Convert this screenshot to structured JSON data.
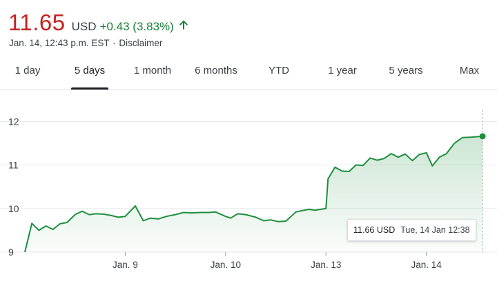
{
  "quote": {
    "price": "11.65",
    "currency": "USD",
    "change": "+0.43 (3.83%)",
    "direction_icon": "arrow-up-icon",
    "timestamp": "Jan. 14, 12:43 p.m. EST",
    "separator": "·",
    "disclaimer": "Disclaimer"
  },
  "colors": {
    "price": "#c5221f",
    "positive": "#188038",
    "line": "#1e8e3e"
  },
  "tabs": [
    {
      "label": "1 day"
    },
    {
      "label": "5 days",
      "active": true
    },
    {
      "label": "1 month"
    },
    {
      "label": "6 months"
    },
    {
      "label": "YTD"
    },
    {
      "label": "1 year"
    },
    {
      "label": "5 years"
    },
    {
      "label": "Max"
    }
  ],
  "tooltip": {
    "value": "11.66 USD",
    "time": "Tue, 14 Jan 12:38"
  },
  "chart_data": {
    "type": "area",
    "title": "",
    "xlabel": "",
    "ylabel": "",
    "ylim": [
      9,
      12.1
    ],
    "yticks": [
      9,
      10,
      11,
      12
    ],
    "xticks": [
      {
        "label": "Jan. 9",
        "x": 1.0
      },
      {
        "label": "Jan. 10",
        "x": 2.0
      },
      {
        "label": "Jan. 13",
        "x": 3.0
      },
      {
        "label": "Jan. 14",
        "x": 4.0
      }
    ],
    "xlim": [
      0,
      4.58
    ],
    "grid": true,
    "series": [
      {
        "values": [
          [
            0.0,
            9.0
          ],
          [
            0.07,
            9.66
          ],
          [
            0.14,
            9.5
          ],
          [
            0.21,
            9.6
          ],
          [
            0.28,
            9.52
          ],
          [
            0.35,
            9.65
          ],
          [
            0.42,
            9.68
          ],
          [
            0.5,
            9.86
          ],
          [
            0.57,
            9.94
          ],
          [
            0.64,
            9.86
          ],
          [
            0.71,
            9.88
          ],
          [
            0.79,
            9.87
          ],
          [
            0.86,
            9.84
          ],
          [
            0.93,
            9.8
          ],
          [
            1.0,
            9.82
          ],
          [
            1.1,
            10.06
          ],
          [
            1.18,
            9.72
          ],
          [
            1.25,
            9.78
          ],
          [
            1.33,
            9.76
          ],
          [
            1.41,
            9.82
          ],
          [
            1.5,
            9.86
          ],
          [
            1.58,
            9.91
          ],
          [
            1.66,
            9.9
          ],
          [
            1.75,
            9.91
          ],
          [
            1.83,
            9.91
          ],
          [
            1.9,
            9.92
          ],
          [
            2.0,
            9.82
          ],
          [
            2.05,
            9.78
          ],
          [
            2.12,
            9.88
          ],
          [
            2.2,
            9.86
          ],
          [
            2.3,
            9.8
          ],
          [
            2.38,
            9.72
          ],
          [
            2.45,
            9.74
          ],
          [
            2.52,
            9.7
          ],
          [
            2.6,
            9.71
          ],
          [
            2.7,
            9.92
          ],
          [
            2.76,
            9.95
          ],
          [
            2.83,
            9.98
          ],
          [
            2.89,
            9.96
          ],
          [
            3.0,
            10.0
          ],
          [
            3.02,
            10.68
          ],
          [
            3.09,
            10.95
          ],
          [
            3.16,
            10.86
          ],
          [
            3.23,
            10.85
          ],
          [
            3.3,
            11.0
          ],
          [
            3.37,
            10.99
          ],
          [
            3.44,
            11.16
          ],
          [
            3.51,
            11.11
          ],
          [
            3.58,
            11.15
          ],
          [
            3.65,
            11.26
          ],
          [
            3.72,
            11.18
          ],
          [
            3.79,
            11.25
          ],
          [
            3.86,
            11.1
          ],
          [
            3.93,
            11.24
          ],
          [
            4.0,
            11.28
          ],
          [
            4.06,
            10.98
          ],
          [
            4.13,
            11.18
          ],
          [
            4.2,
            11.26
          ],
          [
            4.28,
            11.5
          ],
          [
            4.36,
            11.63
          ],
          [
            4.45,
            11.64
          ],
          [
            4.56,
            11.66
          ]
        ]
      }
    ]
  }
}
